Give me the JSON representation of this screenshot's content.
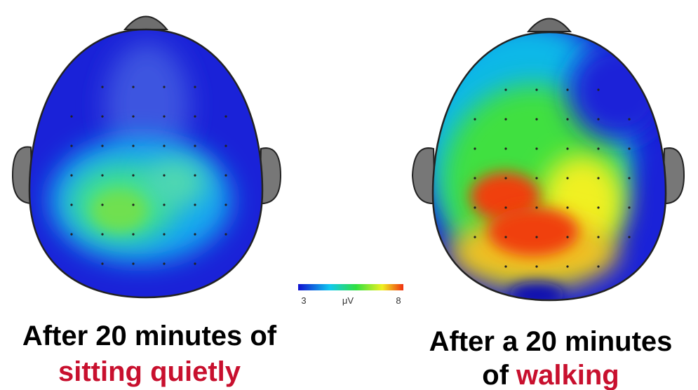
{
  "left": {
    "caption_line1": "After 20 minutes of",
    "caption_line2": "sitting quietly"
  },
  "right": {
    "caption_line1": "After a 20 minutes",
    "caption_line2_prefix": "of",
    "caption_line2_highlight": "walking"
  },
  "colorbar": {
    "min": 3,
    "unit": "μV",
    "max": 8
  }
}
